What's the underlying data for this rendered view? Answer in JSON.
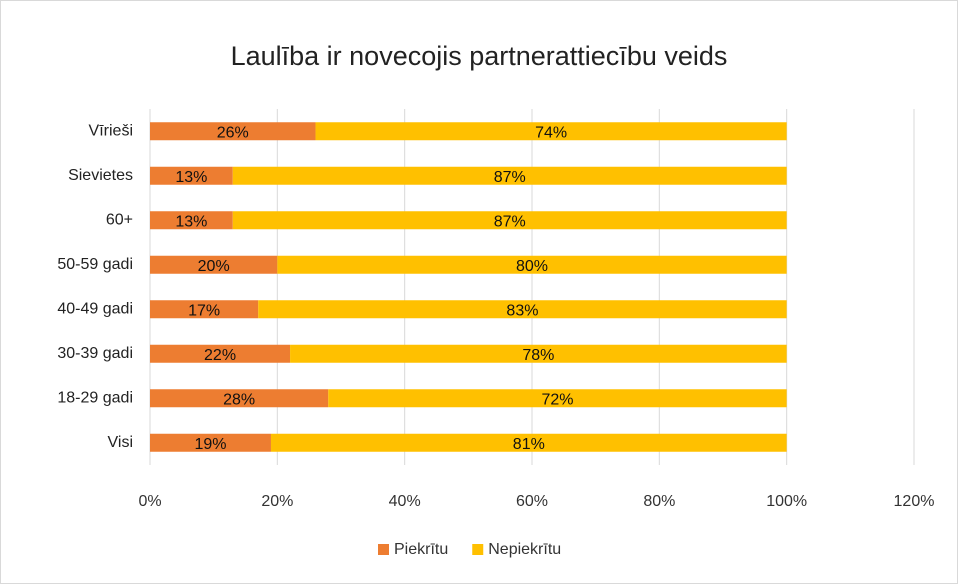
{
  "chart_data": {
    "type": "bar",
    "orientation": "horizontal",
    "stacked": true,
    "title": "Laulība ir novecojis partnerattiecību veids",
    "categories": [
      "Vīrieši",
      "Sievietes",
      "60+",
      "50-59 gadi",
      "40-49 gadi",
      "30-39 gadi",
      "18-29 gadi",
      "Visi"
    ],
    "series": [
      {
        "name": "Piekrītu",
        "color": "#ED7D31",
        "values": [
          26,
          13,
          13,
          20,
          17,
          22,
          28,
          19
        ],
        "value_labels": [
          "26%",
          "13%",
          "13%",
          "20%",
          "17%",
          "22%",
          "28%",
          "19%"
        ]
      },
      {
        "name": "Nepiekrītu",
        "color": "#FFC000",
        "values": [
          74,
          87,
          87,
          80,
          83,
          78,
          72,
          81
        ],
        "value_labels": [
          "74%",
          "87%",
          "87%",
          "80%",
          "83%",
          "78%",
          "72%",
          "81%"
        ]
      }
    ],
    "xlim": [
      0,
      120
    ],
    "xticks": [
      {
        "value": 0,
        "label": "0%"
      },
      {
        "value": 20,
        "label": "20%"
      },
      {
        "value": 40,
        "label": "40%"
      },
      {
        "value": 60,
        "label": "60%"
      },
      {
        "value": 80,
        "label": "80%"
      },
      {
        "value": 100,
        "label": "100%"
      },
      {
        "value": 120,
        "label": "120%"
      }
    ],
    "grid": true,
    "legend": "bottom"
  }
}
